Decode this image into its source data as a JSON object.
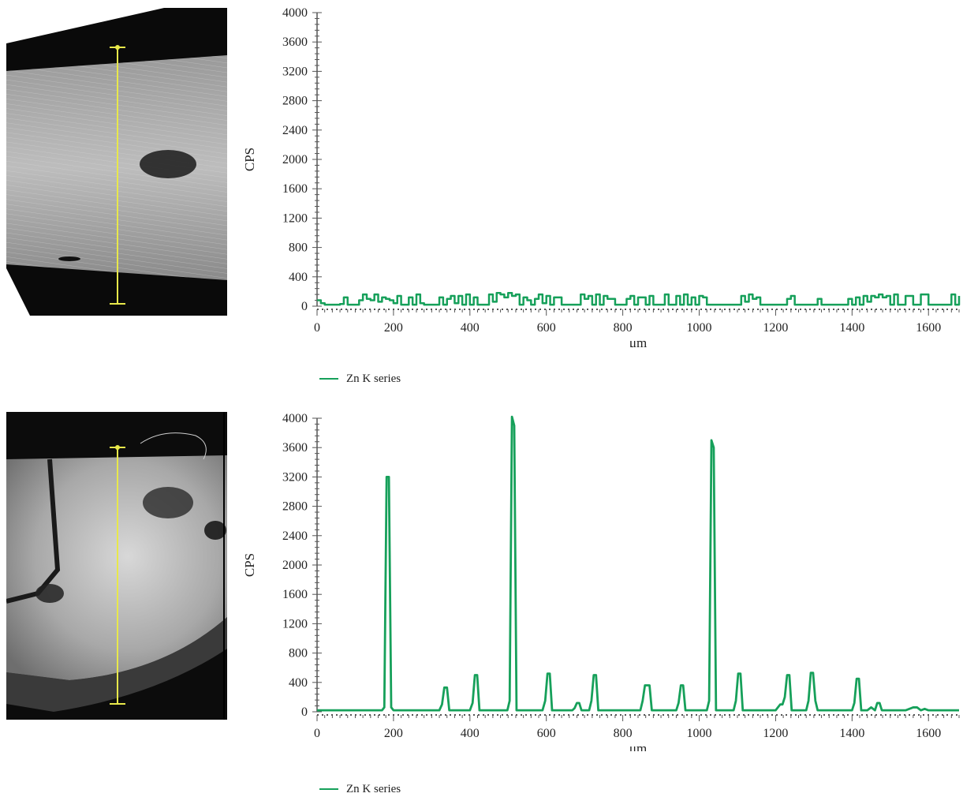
{
  "colors": {
    "series": "#16a05a",
    "axis": "#555555",
    "marker": "#e8e84a"
  },
  "chart_data": [
    {
      "type": "line",
      "title": "",
      "xlabel": "μm",
      "ylabel": "CPS",
      "xlim": [
        0,
        1680
      ],
      "ylim": [
        0,
        4000
      ],
      "x_ticks": [
        "0",
        "200",
        "400",
        "600",
        "800",
        "1000",
        "1200",
        "1400",
        "1600"
      ],
      "y_ticks": [
        "0",
        "400",
        "800",
        "1200",
        "1600",
        "2000",
        "2400",
        "2800",
        "3200",
        "3600",
        "4000"
      ],
      "grid": false,
      "legend_position": "bottom-left",
      "series": [
        {
          "name": "Zn K series",
          "x": [
            0,
            10,
            20,
            40,
            60,
            70,
            80,
            100,
            110,
            120,
            130,
            140,
            150,
            160,
            170,
            180,
            190,
            200,
            210,
            220,
            240,
            250,
            260,
            270,
            280,
            300,
            320,
            330,
            340,
            350,
            360,
            370,
            380,
            390,
            400,
            410,
            420,
            440,
            450,
            460,
            470,
            480,
            490,
            500,
            510,
            520,
            530,
            540,
            550,
            560,
            570,
            580,
            590,
            600,
            610,
            620,
            640,
            660,
            680,
            690,
            700,
            710,
            720,
            730,
            740,
            750,
            760,
            780,
            800,
            810,
            820,
            830,
            840,
            860,
            870,
            880,
            900,
            910,
            920,
            940,
            950,
            960,
            970,
            980,
            990,
            1000,
            1010,
            1020,
            1040,
            1060,
            1080,
            1100,
            1110,
            1120,
            1130,
            1140,
            1150,
            1160,
            1180,
            1200,
            1220,
            1230,
            1240,
            1250,
            1260,
            1280,
            1300,
            1310,
            1320,
            1340,
            1360,
            1380,
            1390,
            1400,
            1410,
            1420,
            1430,
            1440,
            1450,
            1460,
            1470,
            1480,
            1490,
            1500,
            1510,
            1520,
            1540,
            1560,
            1580,
            1600,
            1620,
            1640,
            1660,
            1670,
            1680
          ],
          "values": [
            80,
            40,
            20,
            20,
            30,
            120,
            20,
            20,
            80,
            160,
            100,
            80,
            160,
            60,
            120,
            100,
            80,
            40,
            140,
            20,
            120,
            20,
            160,
            40,
            20,
            20,
            120,
            20,
            100,
            140,
            40,
            140,
            20,
            160,
            20,
            120,
            20,
            20,
            160,
            60,
            180,
            160,
            120,
            180,
            140,
            160,
            20,
            120,
            80,
            20,
            100,
            160,
            40,
            140,
            20,
            120,
            20,
            20,
            20,
            160,
            100,
            140,
            20,
            160,
            20,
            140,
            100,
            20,
            20,
            100,
            140,
            20,
            120,
            20,
            140,
            20,
            20,
            160,
            20,
            140,
            20,
            160,
            20,
            120,
            20,
            140,
            120,
            20,
            20,
            20,
            20,
            20,
            140,
            60,
            160,
            100,
            120,
            20,
            20,
            20,
            20,
            100,
            140,
            20,
            20,
            20,
            20,
            100,
            20,
            20,
            20,
            20,
            100,
            20,
            120,
            20,
            140,
            60,
            140,
            120,
            160,
            120,
            140,
            20,
            160,
            20,
            140,
            20,
            160,
            20,
            20,
            20,
            160,
            20,
            140
          ]
        }
      ]
    },
    {
      "type": "line",
      "title": "",
      "xlabel": "μm",
      "ylabel": "CPS",
      "xlim": [
        0,
        1680
      ],
      "ylim": [
        0,
        4000
      ],
      "x_ticks": [
        "0",
        "200",
        "400",
        "600",
        "800",
        "1000",
        "1200",
        "1400",
        "1600"
      ],
      "y_ticks": [
        "0",
        "400",
        "800",
        "1200",
        "1600",
        "2000",
        "2400",
        "2800",
        "3200",
        "3600",
        "4000"
      ],
      "grid": false,
      "legend_position": "bottom-left",
      "series": [
        {
          "name": "Zn K series",
          "x": [
            0,
            100,
            170,
            176,
            182,
            188,
            194,
            200,
            320,
            327,
            333,
            340,
            346,
            400,
            407,
            413,
            419,
            425,
            440,
            498,
            504,
            510,
            516,
            522,
            590,
            597,
            603,
            609,
            615,
            668,
            674,
            680,
            686,
            692,
            712,
            718,
            724,
            730,
            736,
            846,
            852,
            858,
            864,
            870,
            876,
            940,
            946,
            952,
            958,
            964,
            1020,
            1026,
            1032,
            1038,
            1044,
            1090,
            1096,
            1102,
            1108,
            1114,
            1150,
            1200,
            1212,
            1218,
            1224,
            1230,
            1236,
            1242,
            1280,
            1286,
            1292,
            1298,
            1304,
            1310,
            1400,
            1406,
            1412,
            1418,
            1424,
            1430,
            1440,
            1450,
            1460,
            1466,
            1472,
            1478,
            1484,
            1500,
            1540,
            1560,
            1570,
            1580,
            1590,
            1600,
            1610,
            1620,
            1680
          ],
          "values": [
            20,
            20,
            20,
            60,
            3200,
            3200,
            60,
            20,
            20,
            100,
            330,
            330,
            20,
            20,
            120,
            500,
            500,
            20,
            20,
            20,
            150,
            4020,
            3900,
            20,
            20,
            150,
            520,
            520,
            20,
            20,
            50,
            120,
            120,
            20,
            20,
            150,
            500,
            500,
            20,
            20,
            150,
            360,
            360,
            360,
            20,
            20,
            120,
            360,
            360,
            20,
            20,
            150,
            3700,
            3600,
            20,
            20,
            150,
            520,
            520,
            20,
            20,
            20,
            100,
            100,
            200,
            500,
            500,
            20,
            20,
            150,
            530,
            530,
            150,
            20,
            20,
            120,
            450,
            450,
            20,
            20,
            20,
            60,
            20,
            120,
            120,
            20,
            20,
            20,
            20,
            60,
            60,
            20,
            40,
            20,
            20,
            20,
            20
          ]
        }
      ]
    }
  ]
}
